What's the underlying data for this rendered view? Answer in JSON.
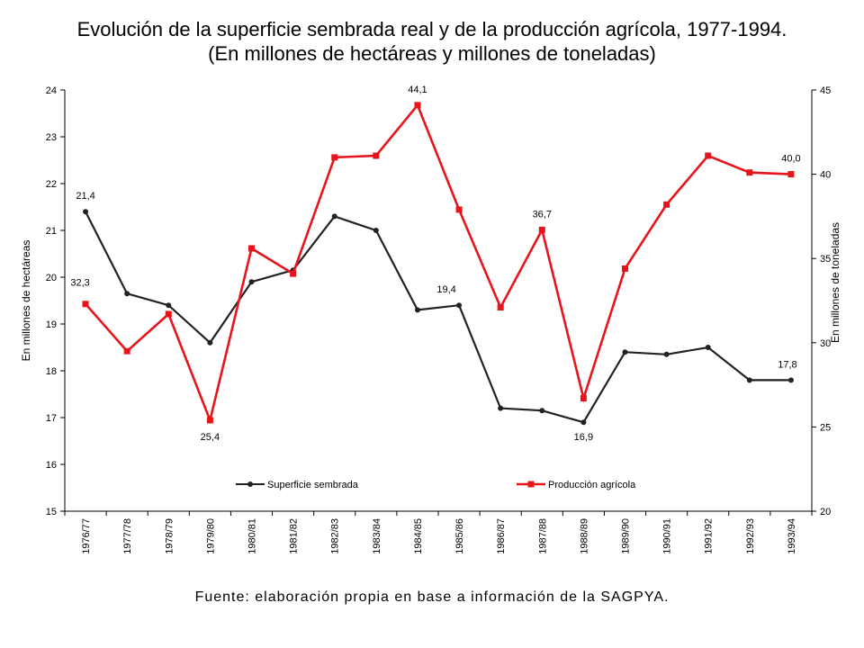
{
  "title_line1": "Evolución de la superficie sembrada real y de la producción agrícola, 1977-1994.",
  "title_line2": "(En millones de hectáreas y millones de toneladas)",
  "source": "Fuente: elaboración propia en base a información de la SAGPYA.",
  "colors": {
    "superficie": "#222222",
    "produccion": "#e8141b"
  },
  "chart_data": {
    "type": "line",
    "title": "Evolución de la superficie sembrada real y de la producción agrícola, 1977-1994.",
    "subtitle": "(En millones de hectáreas y millones de toneladas)",
    "categories": [
      "1976/77",
      "1977/78",
      "1978/79",
      "1979/80",
      "1980/81",
      "1981/82",
      "1982/83",
      "1983/84",
      "1984/85",
      "1985/86",
      "1986/87",
      "1987/88",
      "1988/89",
      "1989/90",
      "1990/91",
      "1991/92",
      "1992/93",
      "1993/94"
    ],
    "ylabel_left": "En millones de hectáreas",
    "ylabel_right": "En millones de toneladas",
    "ylim_left": [
      15,
      24
    ],
    "ylim_right": [
      20,
      45
    ],
    "yticks_left": [
      15,
      16,
      17,
      18,
      19,
      20,
      21,
      22,
      23,
      24
    ],
    "yticks_right": [
      20,
      25,
      30,
      35,
      40,
      45
    ],
    "grid": false,
    "legend_position": "bottom",
    "series": [
      {
        "name": "Superficie sembrada",
        "axis": "left",
        "marker": "circle",
        "values": [
          21.4,
          19.65,
          19.4,
          18.6,
          19.9,
          20.15,
          21.3,
          21.0,
          19.3,
          19.4,
          17.2,
          17.15,
          16.9,
          18.4,
          18.35,
          18.5,
          17.8,
          17.8
        ]
      },
      {
        "name": "Producción agrícola",
        "axis": "right",
        "marker": "square",
        "values": [
          32.3,
          29.5,
          31.7,
          25.4,
          35.6,
          34.1,
          41.0,
          41.1,
          44.1,
          37.9,
          32.1,
          36.7,
          26.7,
          34.4,
          38.2,
          41.1,
          40.1,
          40.0
        ]
      }
    ],
    "data_labels": [
      {
        "series": 0,
        "index": 0,
        "text": "21,4"
      },
      {
        "series": 0,
        "index": 9,
        "text": "19,4"
      },
      {
        "series": 0,
        "index": 12,
        "text": "16,9"
      },
      {
        "series": 0,
        "index": 17,
        "text": "17,8"
      },
      {
        "series": 1,
        "index": 0,
        "text": "32,3"
      },
      {
        "series": 1,
        "index": 3,
        "text": "25,4"
      },
      {
        "series": 1,
        "index": 8,
        "text": "44,1"
      },
      {
        "series": 1,
        "index": 11,
        "text": "36,7"
      },
      {
        "series": 1,
        "index": 17,
        "text": "40,0"
      }
    ]
  }
}
